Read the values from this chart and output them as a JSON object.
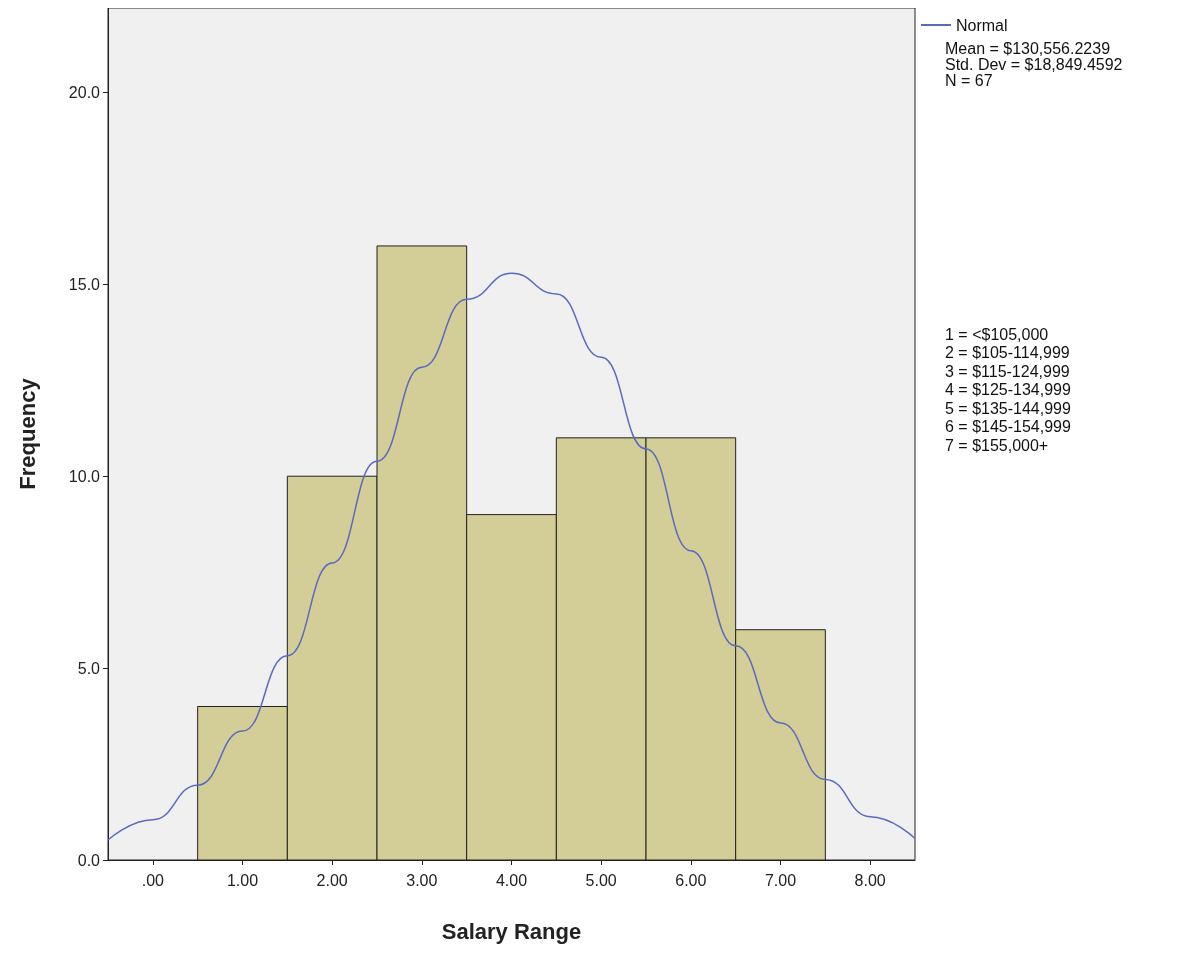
{
  "chart_data": {
    "type": "histogram",
    "xlabel": "Salary Range",
    "ylabel": "Frequency",
    "bins": [
      0.5,
      1.5,
      2.5,
      3.5,
      4.5,
      5.5,
      6.5,
      7.5
    ],
    "values": [
      4,
      10,
      16,
      9,
      11,
      11,
      6
    ],
    "color": "#d3ce97",
    "series": [
      {
        "name": "Normal",
        "type": "line",
        "color": "#5b6abf",
        "x": [
          -0.5,
          0,
          0.5,
          1,
          1.5,
          2,
          2.5,
          3,
          3.5,
          4,
          4.5,
          5,
          5.5,
          6,
          6.5,
          7,
          7.5,
          8,
          8.5
        ],
        "values": [
          0.52,
          1.05,
          1.95,
          3.36,
          5.32,
          7.74,
          10.39,
          12.84,
          14.61,
          15.29,
          14.75,
          13.1,
          10.71,
          8.06,
          5.58,
          3.57,
          2.1,
          1.13,
          0.56
        ]
      }
    ],
    "xlim": [
      -0.5,
      8.5
    ],
    "xticks": [
      {
        "value": 0,
        "label": ".00"
      },
      {
        "value": 1,
        "label": "1.00"
      },
      {
        "value": 2,
        "label": "2.00"
      },
      {
        "value": 3,
        "label": "3.00"
      },
      {
        "value": 4,
        "label": "4.00"
      },
      {
        "value": 5,
        "label": "5.00"
      },
      {
        "value": 6,
        "label": "6.00"
      },
      {
        "value": 7,
        "label": "7.00"
      },
      {
        "value": 8,
        "label": "8.00"
      }
    ],
    "ylim": [
      0,
      22.2
    ],
    "yticks": [
      {
        "value": 0,
        "label": "0.0"
      },
      {
        "value": 5,
        "label": "5.0"
      },
      {
        "value": 10,
        "label": "10.0"
      },
      {
        "value": 15,
        "label": "15.0"
      },
      {
        "value": 20,
        "label": "20.0"
      }
    ],
    "grid": false,
    "legend": "top right",
    "annotations": [
      "Mean = $130,556.2239",
      "Std. Dev = $18,849.4592",
      "N = 67",
      "1 = <$105,000",
      "2 = $105-114,999",
      "3 = $115-124,999",
      "4 = $125-134,999",
      "5 = $135-144,999",
      "6 = $145-154,999",
      "7 = $155,000+"
    ]
  }
}
